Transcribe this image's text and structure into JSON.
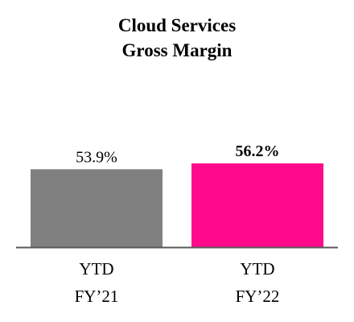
{
  "chart_data": {
    "type": "bar",
    "title_lines": [
      "Cloud Services",
      "Gross Margin"
    ],
    "categories": [
      [
        "YTD",
        "FY’21"
      ],
      [
        "YTD",
        "FY’22"
      ]
    ],
    "values": [
      53.9,
      56.2
    ],
    "value_labels": [
      "53.9%",
      "56.2%"
    ],
    "value_label_bold": [
      false,
      true
    ],
    "colors": [
      "#808080",
      "#FF0A8C"
    ],
    "axis_color": "#595959",
    "unit": "%",
    "ylim": [
      0,
      60
    ],
    "grid": false,
    "legend": "none"
  }
}
